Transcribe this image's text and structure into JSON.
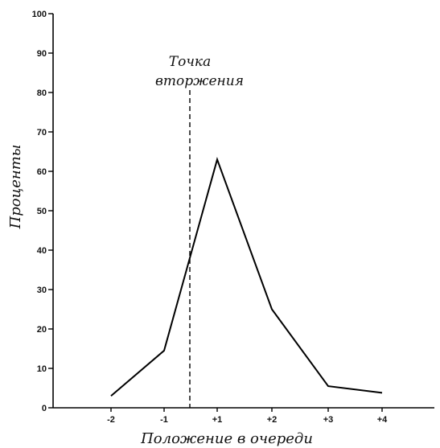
{
  "chart_data": {
    "type": "line",
    "title": "",
    "xlabel": "Положение в очереди",
    "ylabel": "Проценты",
    "x_tick_labels": [
      "-2",
      "-1",
      "+1",
      "+2",
      "+3",
      "+4"
    ],
    "y_ticks": [
      0,
      10,
      20,
      30,
      40,
      50,
      60,
      70,
      80,
      90,
      100
    ],
    "ylim": [
      0,
      100
    ],
    "series": [
      {
        "categories": [
          "-2",
          "-1",
          "+1",
          "+2",
          "+3",
          "+4"
        ],
        "values": [
          3,
          14.5,
          63,
          25,
          5.5,
          3.8
        ]
      }
    ],
    "annotation": {
      "text_line1": "Точка",
      "text_line2": "вторжения",
      "position": "between -1 and +1",
      "style": "dashed vertical line"
    },
    "grid": false,
    "line_color": "#000000"
  }
}
